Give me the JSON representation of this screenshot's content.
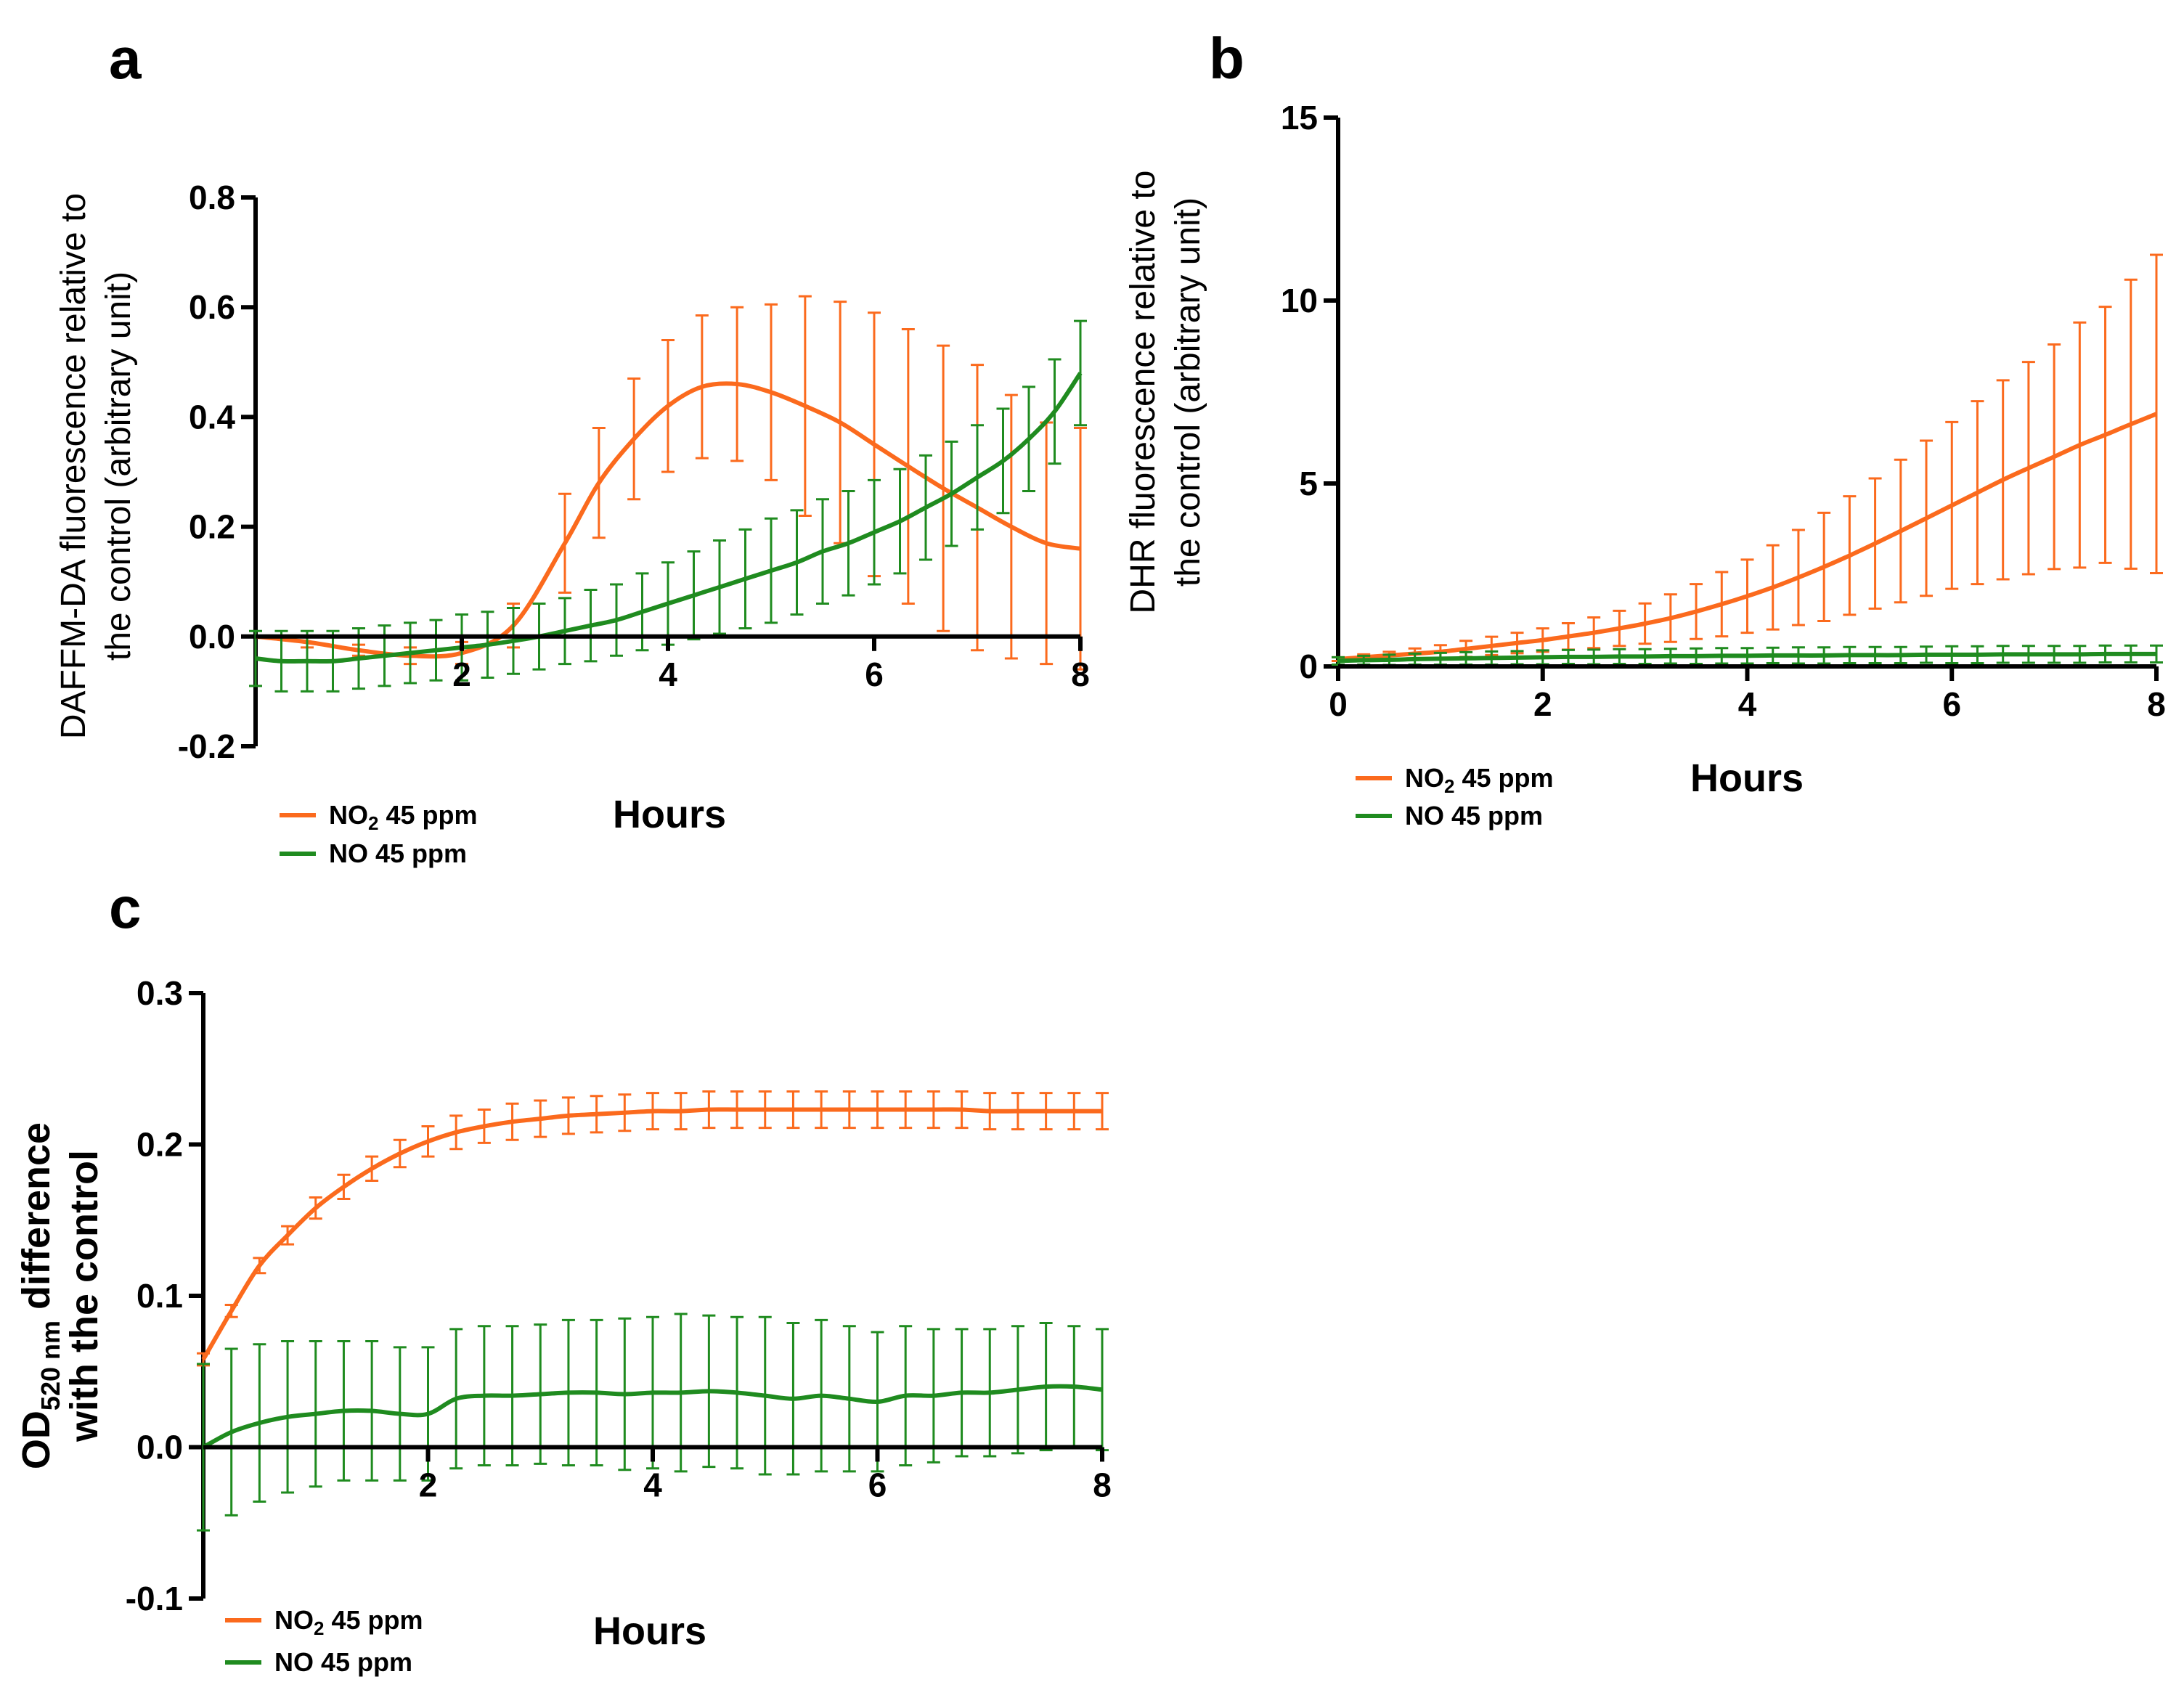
{
  "colors": {
    "no2": "#fb6a1d",
    "no": "#1f8b1f",
    "axis": "#000000"
  },
  "legend": {
    "no2_name": "NO",
    "no2_sub": "2",
    "no2_suffix": " 45 ppm",
    "no_label": "NO 45 ppm"
  },
  "chart_data": [
    {
      "panel": "a",
      "type": "line",
      "title": "",
      "xlabel": "Hours",
      "ylabel": [
        "DAFFM-DA fluorescence relative to",
        "the control (arbitrary unit)"
      ],
      "xlim": [
        0,
        8
      ],
      "ylim": [
        -0.2,
        0.8
      ],
      "xticks": [
        2,
        4,
        6,
        8
      ],
      "xtick_labels": [
        "2",
        "4",
        "6",
        "8"
      ],
      "yticks": [
        -0.2,
        0.0,
        0.2,
        0.4,
        0.6,
        0.8
      ],
      "ytick_labels": [
        "-0.2",
        "0.0",
        "0.2",
        "0.4",
        "0.6",
        "0.8"
      ],
      "legend": [
        "NO2 45 ppm",
        "NO 45 ppm"
      ],
      "series": [
        {
          "name": "NO2 45 ppm",
          "x": [
            0,
            0.5,
            1,
            1.5,
            2,
            2.5,
            3,
            3.33,
            3.67,
            4,
            4.33,
            4.67,
            5,
            5.33,
            5.67,
            6,
            6.33,
            6.67,
            7,
            7.33,
            7.67,
            8
          ],
          "values": [
            0.0,
            -0.01,
            -0.025,
            -0.035,
            -0.03,
            0.02,
            0.17,
            0.28,
            0.36,
            0.42,
            0.455,
            0.46,
            0.445,
            0.42,
            0.39,
            0.35,
            0.31,
            0.27,
            0.235,
            0.2,
            0.17,
            0.16
          ],
          "errors": [
            0.0,
            0.01,
            0.01,
            0.015,
            0.02,
            0.04,
            0.09,
            0.1,
            0.11,
            0.12,
            0.13,
            0.14,
            0.16,
            0.2,
            0.22,
            0.24,
            0.25,
            0.26,
            0.26,
            0.24,
            0.22,
            0.22
          ]
        },
        {
          "name": "NO 45 ppm",
          "x": [
            0,
            0.25,
            0.5,
            0.75,
            1,
            1.25,
            1.5,
            1.75,
            2,
            2.25,
            2.5,
            2.75,
            3,
            3.25,
            3.5,
            3.75,
            4,
            4.25,
            4.5,
            4.75,
            5,
            5.25,
            5.5,
            5.75,
            6,
            6.25,
            6.5,
            6.75,
            7,
            7.25,
            7.5,
            7.75,
            8
          ],
          "values": [
            -0.04,
            -0.045,
            -0.045,
            -0.045,
            -0.04,
            -0.035,
            -0.03,
            -0.025,
            -0.02,
            -0.015,
            -0.008,
            0.0,
            0.01,
            0.02,
            0.03,
            0.045,
            0.06,
            0.075,
            0.09,
            0.105,
            0.12,
            0.135,
            0.155,
            0.17,
            0.19,
            0.21,
            0.235,
            0.26,
            0.29,
            0.32,
            0.36,
            0.41,
            0.48
          ],
          "errors": [
            0.05,
            0.055,
            0.055,
            0.055,
            0.055,
            0.055,
            0.055,
            0.055,
            0.06,
            0.06,
            0.06,
            0.06,
            0.06,
            0.065,
            0.065,
            0.07,
            0.075,
            0.08,
            0.085,
            0.09,
            0.095,
            0.095,
            0.095,
            0.095,
            0.095,
            0.095,
            0.095,
            0.095,
            0.095,
            0.095,
            0.095,
            0.095,
            0.095
          ]
        }
      ]
    },
    {
      "panel": "b",
      "type": "line",
      "title": "",
      "xlabel": "Hours",
      "ylabel": [
        "DHR fluorescence relative to",
        "the control (arbitrary unit)"
      ],
      "xlim": [
        0,
        8
      ],
      "ylim": [
        0,
        15
      ],
      "xticks": [
        0,
        2,
        4,
        6,
        8
      ],
      "xtick_labels": [
        "0",
        "2",
        "4",
        "6",
        "8"
      ],
      "yticks": [
        0,
        5,
        10,
        15
      ],
      "ytick_labels": [
        "0",
        "5",
        "10",
        "15"
      ],
      "legend": [
        "NO2 45 ppm",
        "NO 45 ppm"
      ],
      "series": [
        {
          "name": "NO2 45 ppm",
          "x": [
            0,
            0.25,
            0.5,
            0.75,
            1,
            1.25,
            1.5,
            1.75,
            2,
            2.25,
            2.5,
            2.75,
            3,
            3.25,
            3.5,
            3.75,
            4,
            4.25,
            4.5,
            4.75,
            5,
            5.25,
            5.5,
            5.75,
            6,
            6.25,
            6.5,
            6.75,
            7,
            7.25,
            7.5,
            7.75,
            8
          ],
          "values": [
            0.2,
            0.25,
            0.3,
            0.35,
            0.4,
            0.48,
            0.56,
            0.64,
            0.72,
            0.82,
            0.92,
            1.04,
            1.17,
            1.32,
            1.5,
            1.7,
            1.92,
            2.16,
            2.43,
            2.72,
            3.03,
            3.36,
            3.7,
            4.05,
            4.4,
            4.75,
            5.1,
            5.42,
            5.73,
            6.05,
            6.33,
            6.62,
            6.9
          ],
          "errors": [
            0.05,
            0.08,
            0.1,
            0.14,
            0.18,
            0.22,
            0.25,
            0.28,
            0.32,
            0.36,
            0.42,
            0.48,
            0.55,
            0.65,
            0.75,
            0.88,
            1.0,
            1.15,
            1.3,
            1.48,
            1.62,
            1.78,
            1.95,
            2.12,
            2.28,
            2.5,
            2.72,
            2.9,
            3.07,
            3.35,
            3.5,
            3.95,
            4.35
          ]
        },
        {
          "name": "NO 45 ppm",
          "x": [
            0,
            0.25,
            0.5,
            0.75,
            1,
            1.25,
            1.5,
            1.75,
            2,
            2.25,
            2.5,
            2.75,
            3,
            3.25,
            3.5,
            3.75,
            4,
            4.25,
            4.5,
            4.75,
            5,
            5.25,
            5.5,
            5.75,
            6,
            6.25,
            6.5,
            6.75,
            7,
            7.25,
            7.5,
            7.75,
            8
          ],
          "values": [
            0.15,
            0.17,
            0.18,
            0.2,
            0.21,
            0.22,
            0.23,
            0.24,
            0.25,
            0.26,
            0.26,
            0.27,
            0.27,
            0.28,
            0.28,
            0.29,
            0.29,
            0.3,
            0.3,
            0.3,
            0.31,
            0.31,
            0.31,
            0.32,
            0.32,
            0.32,
            0.33,
            0.33,
            0.33,
            0.33,
            0.34,
            0.34,
            0.34
          ],
          "errors": [
            0.1,
            0.12,
            0.14,
            0.15,
            0.16,
            0.17,
            0.18,
            0.18,
            0.19,
            0.19,
            0.2,
            0.2,
            0.2,
            0.2,
            0.21,
            0.21,
            0.21,
            0.21,
            0.22,
            0.22,
            0.22,
            0.22,
            0.22,
            0.22,
            0.23,
            0.23,
            0.23,
            0.23,
            0.23,
            0.23,
            0.23,
            0.23,
            0.23
          ]
        }
      ]
    },
    {
      "panel": "c",
      "type": "line",
      "title": "",
      "xlabel": "Hours",
      "ylabel_main": "OD",
      "ylabel_sub": "520 nm",
      "ylabel_rest": " difference",
      "ylabel_line2": "with the control",
      "xlim": [
        0,
        8
      ],
      "ylim": [
        -0.1,
        0.3
      ],
      "xticks": [
        2,
        4,
        6,
        8
      ],
      "xtick_labels": [
        "2",
        "4",
        "6",
        "8"
      ],
      "yticks": [
        -0.1,
        0.0,
        0.1,
        0.2,
        0.3
      ],
      "ytick_labels": [
        "-0.1",
        "0.0",
        "0.1",
        "0.2",
        "0.3"
      ],
      "legend": [
        "NO2 45 ppm",
        "NO 45 ppm"
      ],
      "series": [
        {
          "name": "NO2 45 ppm",
          "x": [
            0,
            0.25,
            0.5,
            0.75,
            1,
            1.25,
            1.5,
            1.75,
            2,
            2.25,
            2.5,
            2.75,
            3,
            3.25,
            3.5,
            3.75,
            4,
            4.25,
            4.5,
            4.75,
            5,
            5.25,
            5.5,
            5.75,
            6,
            6.25,
            6.5,
            6.75,
            7,
            7.25,
            7.5,
            7.75,
            8
          ],
          "values": [
            0.058,
            0.09,
            0.12,
            0.14,
            0.158,
            0.172,
            0.184,
            0.194,
            0.202,
            0.208,
            0.212,
            0.215,
            0.217,
            0.219,
            0.22,
            0.221,
            0.222,
            0.222,
            0.223,
            0.223,
            0.223,
            0.223,
            0.223,
            0.223,
            0.223,
            0.223,
            0.223,
            0.223,
            0.222,
            0.222,
            0.222,
            0.222,
            0.222
          ],
          "errors": [
            0.004,
            0.004,
            0.005,
            0.006,
            0.007,
            0.008,
            0.008,
            0.009,
            0.01,
            0.011,
            0.011,
            0.012,
            0.012,
            0.012,
            0.012,
            0.012,
            0.012,
            0.012,
            0.012,
            0.012,
            0.012,
            0.012,
            0.012,
            0.012,
            0.012,
            0.012,
            0.012,
            0.012,
            0.012,
            0.012,
            0.012,
            0.012,
            0.012
          ]
        },
        {
          "name": "NO 45 ppm",
          "x": [
            0,
            0.25,
            0.5,
            0.75,
            1,
            1.25,
            1.5,
            1.75,
            2,
            2.25,
            2.5,
            2.75,
            3,
            3.25,
            3.5,
            3.75,
            4,
            4.25,
            4.5,
            4.75,
            5,
            5.25,
            5.5,
            5.75,
            6,
            6.25,
            6.5,
            6.75,
            7,
            7.25,
            7.5,
            7.75,
            8
          ],
          "values": [
            0.0,
            0.01,
            0.016,
            0.02,
            0.022,
            0.024,
            0.024,
            0.022,
            0.022,
            0.032,
            0.034,
            0.034,
            0.035,
            0.036,
            0.036,
            0.035,
            0.036,
            0.036,
            0.037,
            0.036,
            0.034,
            0.032,
            0.034,
            0.032,
            0.03,
            0.034,
            0.034,
            0.036,
            0.036,
            0.038,
            0.04,
            0.04,
            0.038
          ],
          "errors": [
            0.055,
            0.055,
            0.052,
            0.05,
            0.048,
            0.046,
            0.046,
            0.044,
            0.044,
            0.046,
            0.046,
            0.046,
            0.046,
            0.048,
            0.048,
            0.05,
            0.05,
            0.052,
            0.05,
            0.05,
            0.052,
            0.05,
            0.05,
            0.048,
            0.046,
            0.046,
            0.044,
            0.042,
            0.042,
            0.042,
            0.042,
            0.04,
            0.04
          ]
        }
      ]
    }
  ]
}
